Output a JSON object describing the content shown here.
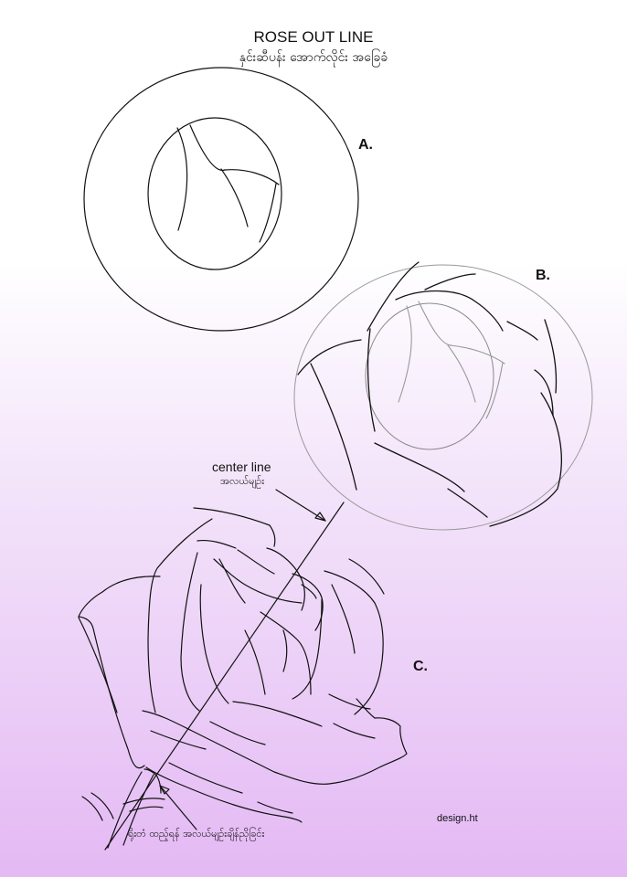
{
  "title": "ROSE OUT LINE",
  "subtitle": "နှင်းဆီပန်း အောက်လိုင်း အခြေခံ",
  "steps": {
    "a": {
      "label": "A."
    },
    "b": {
      "label": "B."
    },
    "c": {
      "label": "C."
    }
  },
  "annotations": {
    "center_line_en": "center line",
    "center_line_my": "အလယ်မျဉ်း",
    "stem_note": "ရိုးတံ ထည့်ရန် အလယ်မျဉ်းချိန်ညိုခြင်း"
  },
  "credit": "design.ht",
  "colors": {
    "ink": "#111111",
    "guide": "#8a8a8a",
    "background_top": "#ffffff",
    "background_bottom": "#e4b9f4"
  }
}
